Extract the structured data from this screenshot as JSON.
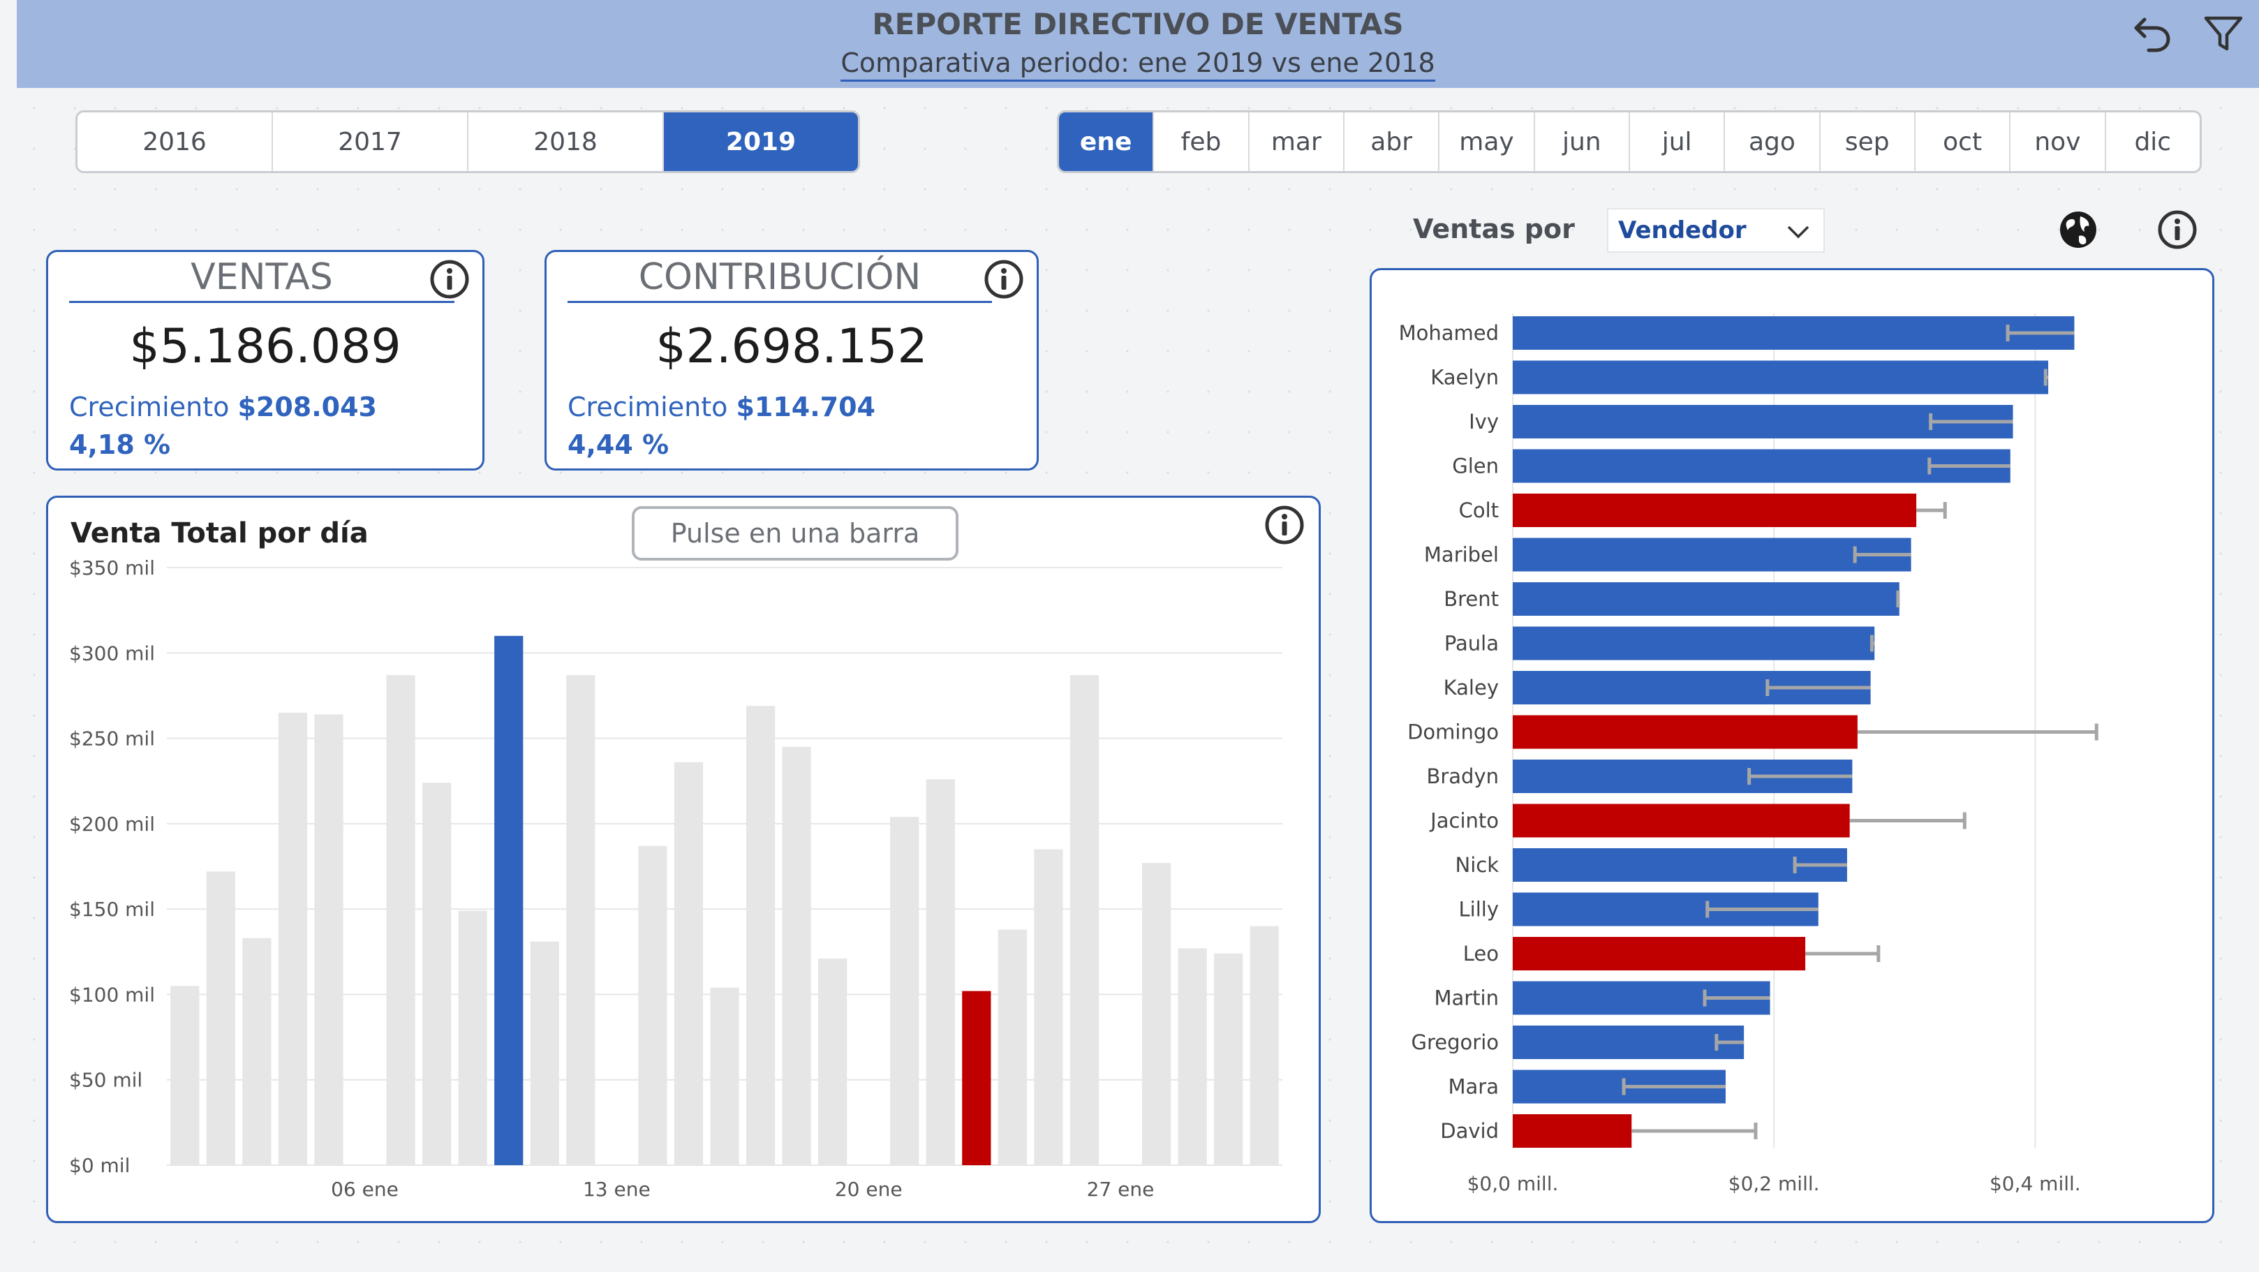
{
  "header": {
    "title": "REPORTE DIRECTIVO DE VENTAS",
    "subtitle": "Comparativa periodo: ene 2019 vs ene 2018",
    "icons": [
      "undo-icon",
      "filter-icon"
    ]
  },
  "year_slicer": {
    "options": [
      "2016",
      "2017",
      "2018",
      "2019"
    ],
    "selected": "2019"
  },
  "month_slicer": {
    "options": [
      "ene",
      "feb",
      "mar",
      "abr",
      "may",
      "jun",
      "jul",
      "ago",
      "sep",
      "oct",
      "nov",
      "dic"
    ],
    "selected": "ene"
  },
  "ventas_card": {
    "label": "VENTAS",
    "value": "$5.186.089",
    "growth_label": "Crecimiento",
    "growth_value": "$208.043",
    "growth_pct": "4,18 %"
  },
  "contrib_card": {
    "label": "CONTRIBUCIÓN",
    "value": "$2.698.152",
    "growth_label": "Crecimiento",
    "growth_value": "$114.704",
    "growth_pct": "4,44 %"
  },
  "daily_chart": {
    "title": "Venta Total por día",
    "button_label": "Pulse en una barra"
  },
  "seller_panel": {
    "label": "Ventas por",
    "dropdown_value": "Vendedor",
    "icons": [
      "globe-icon",
      "info-icon"
    ]
  },
  "colors": {
    "accent": "#2f63bd",
    "negative": "#c00000",
    "bar_gray": "#e6e6e6",
    "errorbar": "#a6a6a6",
    "header_bg": "#9fb6df"
  },
  "chart_data": [
    {
      "type": "bar",
      "title": "Venta Total por día",
      "ylim": [
        0,
        350
      ],
      "yticks": [
        "$0 mil",
        "$50 mil",
        "$100 mil",
        "$150 mil",
        "$200 mil",
        "$250 mil",
        "$300 mil",
        "$350 mil"
      ],
      "ytick_values": [
        0,
        50,
        100,
        150,
        200,
        250,
        300,
        350
      ],
      "xtick_labels": [
        {
          "day": 6,
          "label": "06 ene"
        },
        {
          "day": 13,
          "label": "13 ene"
        },
        {
          "day": 20,
          "label": "20 ene"
        },
        {
          "day": 27,
          "label": "27 ene"
        }
      ],
      "days": [
        1,
        2,
        3,
        4,
        5,
        6,
        7,
        8,
        9,
        10,
        11,
        12,
        13,
        14,
        15,
        16,
        17,
        18,
        19,
        20,
        21,
        22,
        23,
        24,
        25,
        26,
        27,
        28,
        29,
        30,
        31
      ],
      "values": [
        105,
        172,
        133,
        265,
        264,
        0,
        287,
        224,
        149,
        310,
        131,
        287,
        0,
        187,
        236,
        104,
        269,
        245,
        121,
        0,
        204,
        226,
        102,
        138,
        185,
        287,
        0,
        177,
        127,
        124,
        140
      ],
      "highlight": {
        "10": "#2f63bd",
        "23": "#c00000"
      },
      "grid": true
    },
    {
      "type": "bar",
      "orientation": "horizontal",
      "xlim": [
        0,
        0.48
      ],
      "xticks": [
        "$0,0 mill.",
        "$0,2 mill.",
        "$0,4 mill."
      ],
      "xtick_values": [
        0,
        0.2,
        0.4
      ],
      "grid": true,
      "categories": [
        "Mohamed",
        "Kaelyn",
        "Ivy",
        "Glen",
        "Colt",
        "Maribel",
        "Brent",
        "Paula",
        "Kaley",
        "Domingo",
        "Bradyn",
        "Jacinto",
        "Nick",
        "Lilly",
        "Leo",
        "Martin",
        "Gregorio",
        "Mara",
        "David"
      ],
      "values": [
        0.43,
        0.41,
        0.383,
        0.381,
        0.309,
        0.305,
        0.296,
        0.277,
        0.274,
        0.264,
        0.26,
        0.258,
        0.256,
        0.234,
        0.224,
        0.197,
        0.177,
        0.163,
        0.091
      ],
      "comparison": [
        0.379,
        0.408,
        0.32,
        0.319,
        0.331,
        0.262,
        0.295,
        0.275,
        0.195,
        0.447,
        0.181,
        0.346,
        0.216,
        0.149,
        0.28,
        0.147,
        0.156,
        0.085,
        0.186
      ],
      "negative": [
        "Colt",
        "Domingo",
        "Jacinto",
        "Leo",
        "David"
      ]
    }
  ]
}
